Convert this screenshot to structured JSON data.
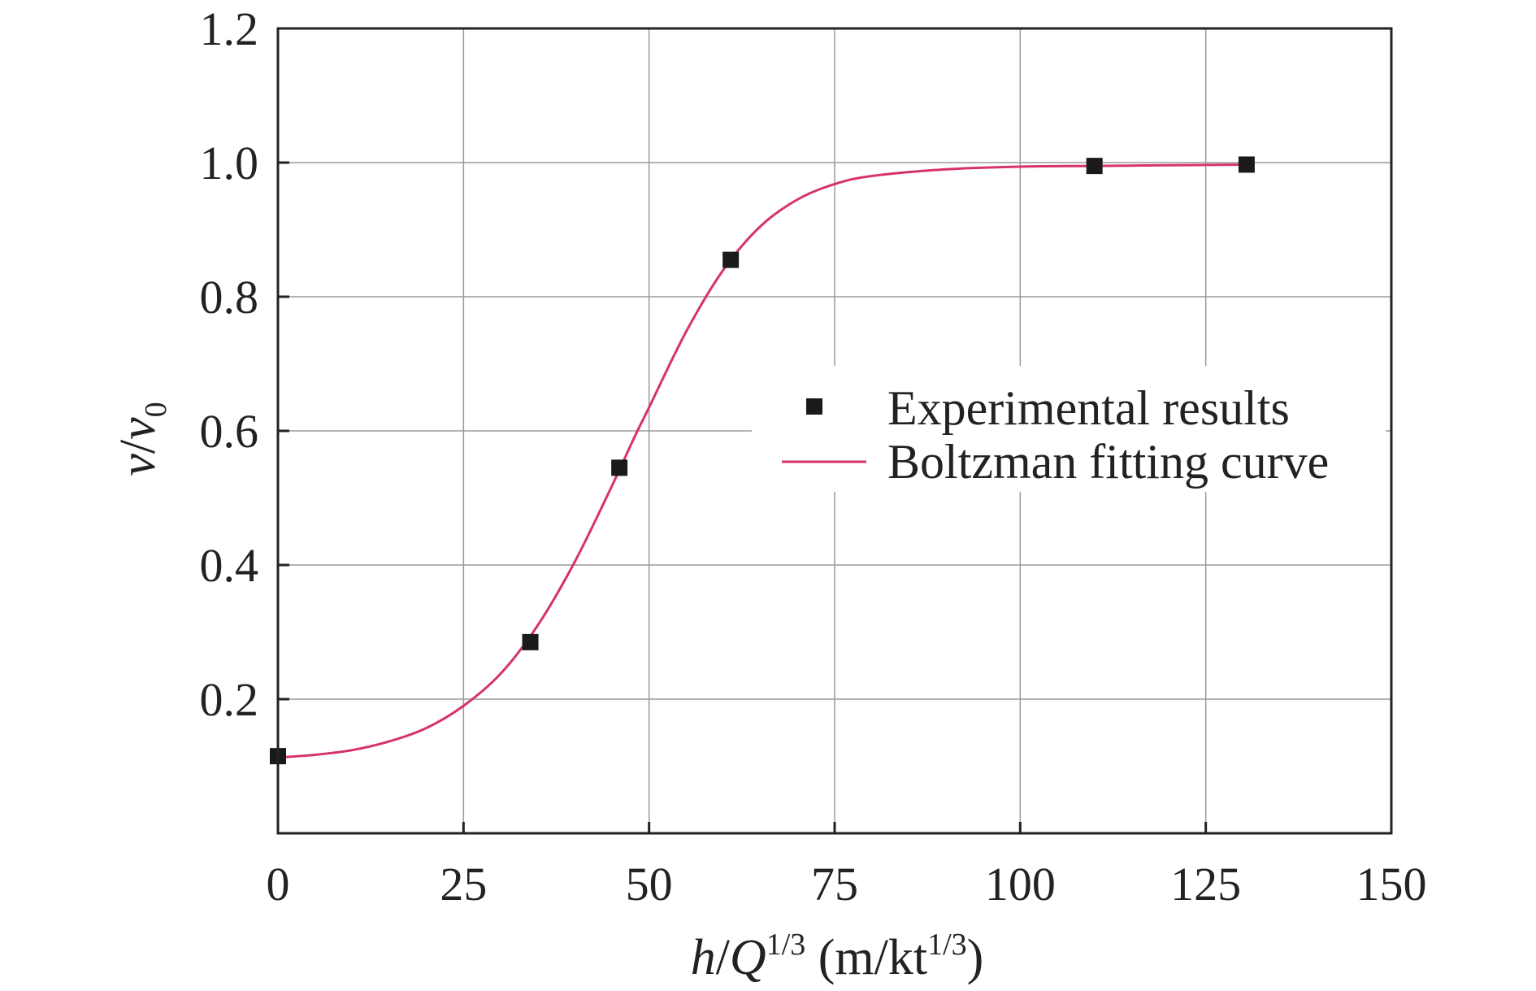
{
  "chart_data": {
    "type": "scatter",
    "xlabel": {
      "var": "h",
      "slash": "/",
      "var2": "Q",
      "sup": "1/3",
      "unit_open": " (m/kt",
      "unit_sup": "1/3",
      "unit_close": ")"
    },
    "ylabel": {
      "var": "v",
      "slash": "/",
      "var2": "v",
      "sub": "0"
    },
    "xlim": [
      0,
      150
    ],
    "ylim": [
      0,
      1.2
    ],
    "x_ticks": [
      0,
      25,
      50,
      75,
      100,
      125,
      150
    ],
    "x_tick_labels": [
      "0",
      "25",
      "50",
      "75",
      "100",
      "125",
      "150"
    ],
    "y_ticks": [
      0.2,
      0.4,
      0.6,
      0.8,
      1.0,
      1.2
    ],
    "y_tick_labels": [
      "0.2",
      "0.4",
      "0.6",
      "0.8",
      "1.0",
      "1.2"
    ],
    "grid": true,
    "legend_position": "center-right",
    "series": [
      {
        "name": "Experimental results",
        "kind": "scatter",
        "marker": "square",
        "color": "#1a1a1a",
        "x": [
          0,
          34,
          46,
          61,
          110,
          130.5
        ],
        "y": [
          0.115,
          0.285,
          0.545,
          0.855,
          0.995,
          0.997
        ]
      },
      {
        "name": "Boltzman fitting curve",
        "kind": "line",
        "color": "#d6336c",
        "x": [
          0,
          5,
          10,
          15,
          20,
          25,
          30,
          35,
          40,
          45,
          48,
          50,
          55,
          60,
          65,
          70,
          75,
          80,
          90,
          100,
          110,
          120,
          130
        ],
        "y": [
          0.113,
          0.117,
          0.124,
          0.137,
          0.157,
          0.19,
          0.238,
          0.31,
          0.405,
          0.518,
          0.59,
          0.635,
          0.748,
          0.84,
          0.905,
          0.945,
          0.968,
          0.98,
          0.99,
          0.994,
          0.995,
          0.996,
          0.997
        ]
      }
    ]
  }
}
